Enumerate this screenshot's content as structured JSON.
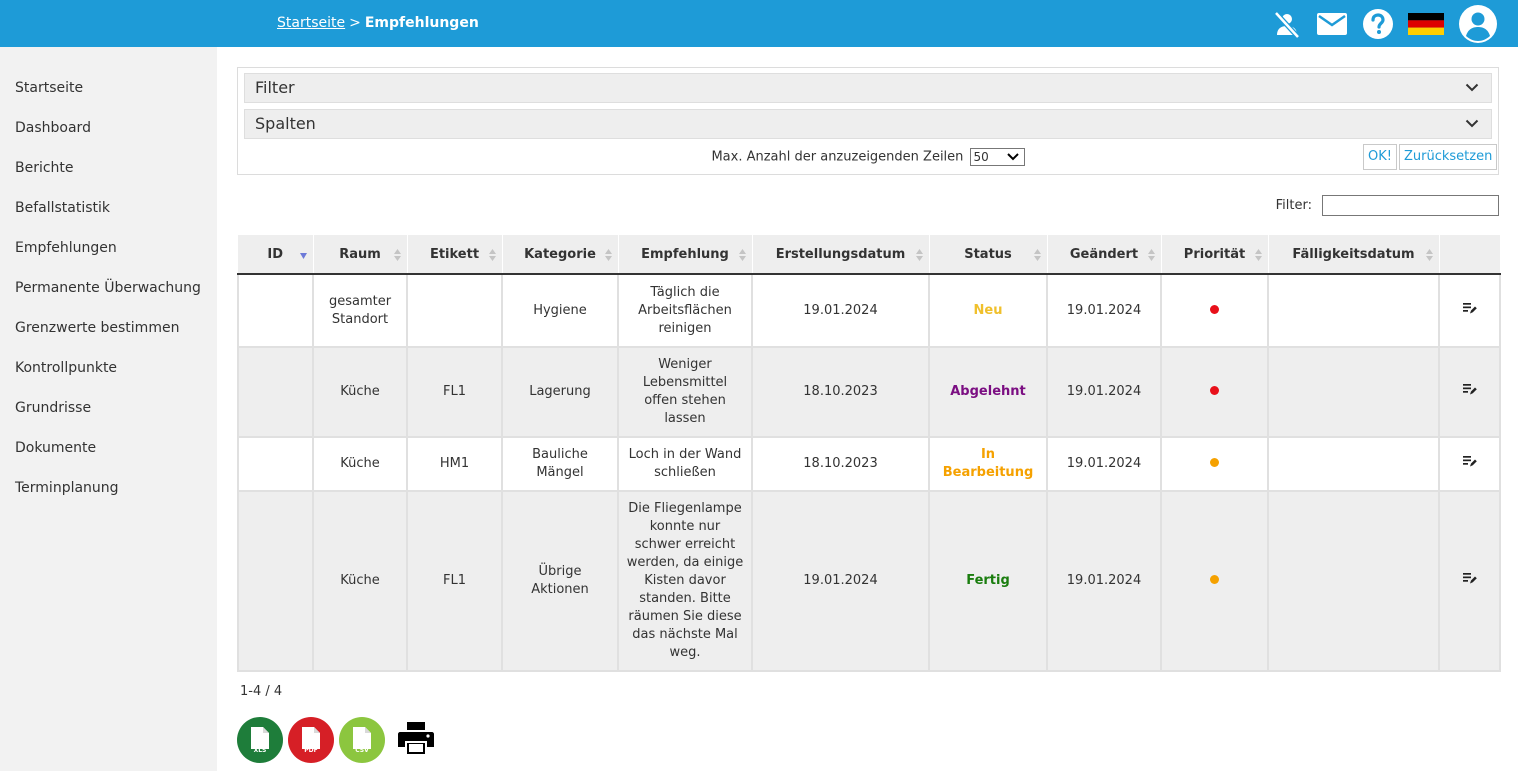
{
  "breadcrumb": {
    "home": "Startseite",
    "separator": ">",
    "current": "Empfehlungen"
  },
  "header_icons": [
    "person-off-icon",
    "mail-icon",
    "help-icon",
    "german-flag-icon",
    "user-avatar-icon"
  ],
  "sidebar": {
    "items": [
      {
        "label": "Startseite"
      },
      {
        "label": "Dashboard"
      },
      {
        "label": "Berichte"
      },
      {
        "label": "Befallstatistik"
      },
      {
        "label": "Empfehlungen"
      },
      {
        "label": "Permanente Überwachung"
      },
      {
        "label": "Grenzwerte bestimmen"
      },
      {
        "label": "Kontrollpunkte"
      },
      {
        "label": "Grundrisse"
      },
      {
        "label": "Dokumente"
      },
      {
        "label": "Terminplanung"
      }
    ]
  },
  "panel": {
    "filter_label": "Filter",
    "columns_label": "Spalten",
    "max_rows_label": "Max. Anzahl der anzuzeigenden Zeilen",
    "max_rows_value": "50",
    "ok_label": "OK!",
    "reset_label": "Zurücksetzen"
  },
  "search": {
    "label": "Filter:",
    "value": ""
  },
  "table": {
    "headers": [
      "ID",
      "Raum",
      "Etikett",
      "Kategorie",
      "Empfehlung",
      "Erstellungsdatum",
      "Status",
      "Geändert",
      "Priorität",
      "Fälligkeitsdatum",
      ""
    ],
    "rows": [
      {
        "id": "",
        "raum": "gesamter Standort",
        "etikett": "",
        "kategorie": "Hygiene",
        "empfehlung": "Täglich die Arbeitsflächen reinigen",
        "erstellt": "19.01.2024",
        "status": "Neu",
        "geaendert": "19.01.2024",
        "prioritaet_color": "#e8101a",
        "faellig": ""
      },
      {
        "id": "",
        "raum": "Küche",
        "etikett": "FL1",
        "kategorie": "Lagerung",
        "empfehlung": "Weniger Lebensmittel offen stehen lassen",
        "erstellt": "18.10.2023",
        "status": "Abgelehnt",
        "geaendert": "19.01.2024",
        "prioritaet_color": "#e8101a",
        "faellig": ""
      },
      {
        "id": "",
        "raum": "Küche",
        "etikett": "HM1",
        "kategorie": "Bauliche Mängel",
        "empfehlung": "Loch in der Wand schließen",
        "erstellt": "18.10.2023",
        "status": "In Bearbeitung",
        "geaendert": "19.01.2024",
        "prioritaet_color": "#f5a100",
        "faellig": ""
      },
      {
        "id": "",
        "raum": "Küche",
        "etikett": "FL1",
        "kategorie": "Übrige Aktionen",
        "empfehlung": "Die Fliegenlampe konnte nur schwer erreicht werden, da einige Kisten davor standen. Bitte räumen Sie diese das nächste Mal weg.",
        "erstellt": "19.01.2024",
        "status": "Fertig",
        "geaendert": "19.01.2024",
        "prioritaet_color": "#f5a100",
        "faellig": ""
      }
    ]
  },
  "pagination": {
    "summary": "1-4 / 4"
  },
  "exports": {
    "xls": "XLS",
    "pdf": "PDF",
    "csv": "CSV"
  },
  "colors": {
    "header": "#1e9bd7",
    "status_neu": "#f0c02c",
    "status_abgelehnt": "#7b0e82",
    "status_in_bearbeitung": "#f5a100",
    "status_fertig": "#1a7d0e"
  }
}
